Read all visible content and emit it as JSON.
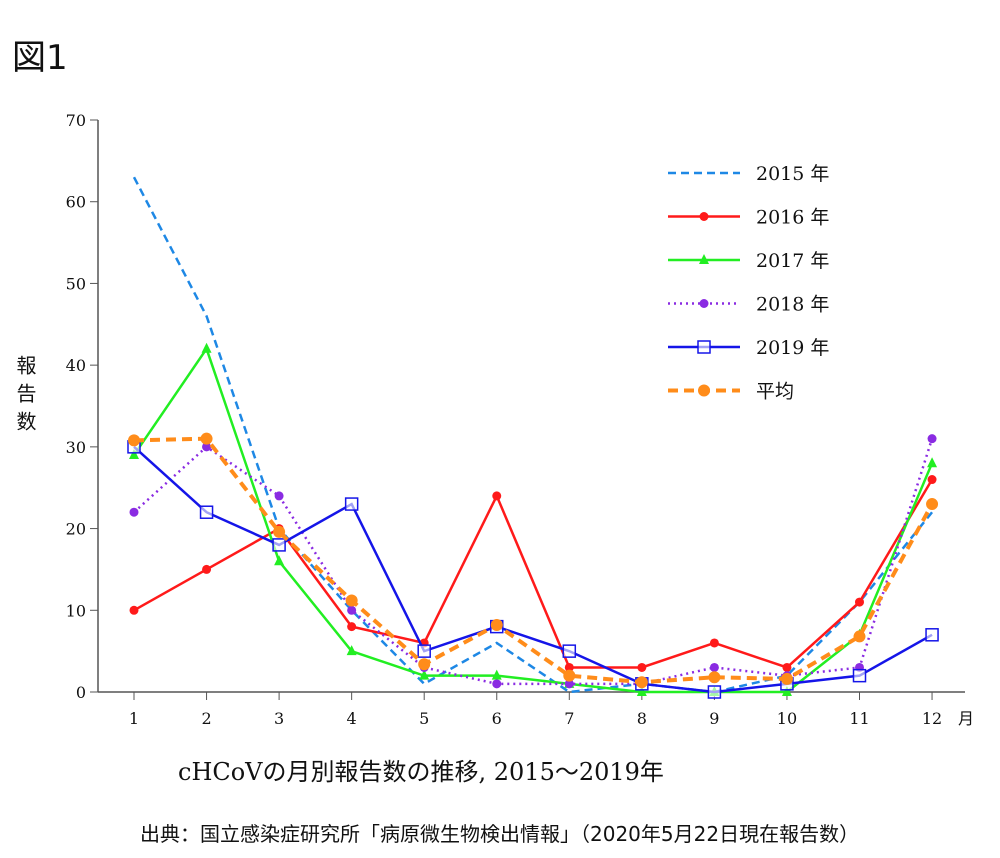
{
  "figure_label": "図1",
  "chart_data": {
    "type": "line",
    "title": "cHCoVの月別報告数の推移, 2015〜2019年",
    "xlabel": "月",
    "ylabel": "報告数",
    "x": [
      1,
      2,
      3,
      4,
      5,
      6,
      7,
      8,
      9,
      10,
      11,
      12
    ],
    "xticks": [
      "1",
      "2",
      "3",
      "4",
      "5",
      "6",
      "7",
      "8",
      "9",
      "10",
      "11",
      "12"
    ],
    "yticks": [
      "0",
      "10",
      "20",
      "30",
      "40",
      "50",
      "60",
      "70"
    ],
    "ylim": [
      0,
      70
    ],
    "legend_position": "top-right",
    "series": [
      {
        "name": "2015 年",
        "color": "#1e88e5",
        "dash": "dashed",
        "marker": "none",
        "values": [
          63,
          46,
          20,
          10,
          1,
          6,
          0,
          1,
          0,
          2,
          11,
          22
        ]
      },
      {
        "name": "2016 年",
        "color": "#ff1a1a",
        "dash": "solid",
        "marker": "circle",
        "values": [
          10,
          15,
          20,
          8,
          6,
          24,
          3,
          3,
          6,
          3,
          11,
          26
        ]
      },
      {
        "name": "2017 年",
        "color": "#22ee22",
        "dash": "solid",
        "marker": "triangle",
        "values": [
          29,
          42,
          16,
          5,
          2,
          2,
          1,
          0,
          0,
          0,
          7,
          28
        ]
      },
      {
        "name": "2018 年",
        "color": "#8a2be2",
        "dash": "dotted",
        "marker": "circle",
        "values": [
          22,
          30,
          24,
          10,
          3,
          1,
          1,
          1,
          3,
          2,
          3,
          31
        ]
      },
      {
        "name": "2019 年",
        "color": "#1515e8",
        "dash": "solid",
        "marker": "square",
        "values": [
          30,
          22,
          18,
          23,
          5,
          8,
          5,
          1,
          0,
          1,
          2,
          7
        ]
      },
      {
        "name": "平均",
        "color": "#ff8c1a",
        "dash": "bolddash",
        "marker": "circle",
        "values": [
          30.8,
          31,
          19.6,
          11.2,
          3.4,
          8.2,
          2,
          1.2,
          1.8,
          1.6,
          6.8,
          23
        ]
      }
    ]
  },
  "source": "出典：国立感染症研究所「病原微生物検出情報」（2020年5月22日現在報告数）"
}
